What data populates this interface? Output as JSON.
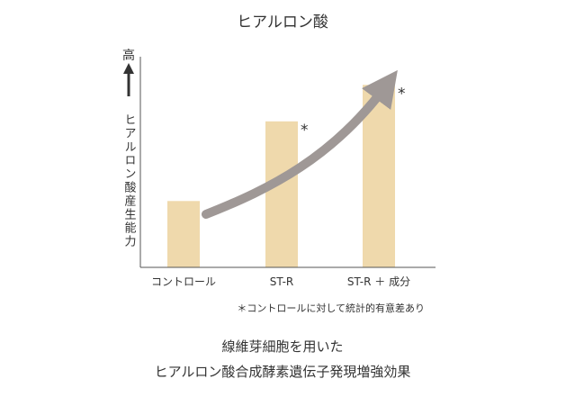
{
  "chart_data": {
    "type": "bar",
    "title": "ヒアルロン酸",
    "categories": [
      "コントロール",
      "ST-R",
      "ST-R ＋ 成分"
    ],
    "values": [
      1.0,
      2.2,
      2.75
    ],
    "ylim": [
      0,
      3.5
    ],
    "y_axis_high_label": "高",
    "ylabel": "ヒアルロン酸産生能力",
    "significance_marks": [
      "",
      "*",
      "*"
    ],
    "footnote": "＊コントロールに対して統計的有意差あり",
    "caption_lines": [
      "線維芽細胞を用いた",
      "ヒアルロン酸合成酵素遺伝子発現増強効果"
    ],
    "grid": false,
    "legend": "none"
  },
  "colors": {
    "bar": "#efd9ac",
    "axis": "#555555",
    "trend_arrow": "#9f9896",
    "text": "#333333"
  }
}
